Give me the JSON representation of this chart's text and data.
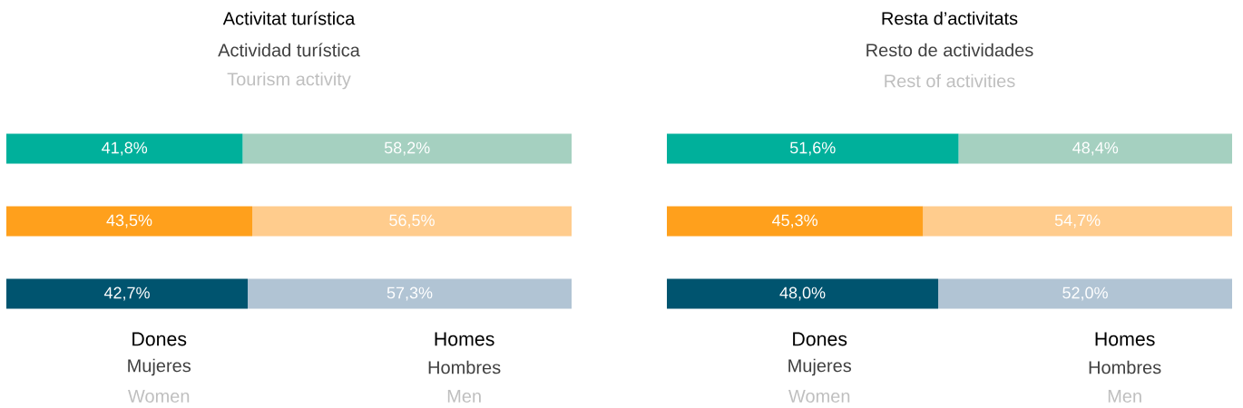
{
  "chart_data": [
    {
      "type": "bar",
      "orientation": "horizontal",
      "stacked": true,
      "title": "Activitat turística",
      "subtitle": "Actividad turística",
      "annotations": [
        "Tourism activity",
        "Mujeres",
        "Women",
        "Hombres",
        "Men"
      ],
      "categories": [
        null,
        null,
        null
      ],
      "xlim": [
        0,
        100
      ],
      "tick_labels": false,
      "series": [
        {
          "name": "Dones",
          "colors": [
            "#00b09b",
            "#ffa01c",
            "#00546f"
          ],
          "values": [
            41.8,
            43.5,
            42.7
          ],
          "value_labels": [
            "41,8%",
            "43,5%",
            "42,7%"
          ]
        },
        {
          "name": "Homes",
          "colors": [
            "#a5d0c0",
            "#ffcc8d",
            "#b1c4d4"
          ],
          "values": [
            58.2,
            56.5,
            57.3
          ],
          "value_labels": [
            "58,2%",
            "56,5%",
            "57,3%"
          ]
        }
      ]
    },
    {
      "type": "bar",
      "orientation": "horizontal",
      "stacked": true,
      "title": "Resta d’activitats",
      "subtitle": "Resto de actividades",
      "annotations": [
        "Rest of activities",
        "Mujeres",
        "Women",
        "Hombres",
        "Men"
      ],
      "categories": [
        null,
        null,
        null
      ],
      "xlim": [
        0,
        100
      ],
      "tick_labels": false,
      "series": [
        {
          "name": "Dones",
          "colors": [
            "#00b09b",
            "#ffa01c",
            "#00546f"
          ],
          "values": [
            51.6,
            45.3,
            48.0
          ],
          "value_labels": [
            "51,6%",
            "45,3%",
            "48,0%"
          ]
        },
        {
          "name": "Homes",
          "colors": [
            "#a5d0c0",
            "#ffcc8d",
            "#b1c4d4"
          ],
          "values": [
            48.4,
            54.7,
            52.0
          ],
          "value_labels": [
            "48,4%",
            "54,7%",
            "52,0%"
          ]
        }
      ]
    }
  ]
}
